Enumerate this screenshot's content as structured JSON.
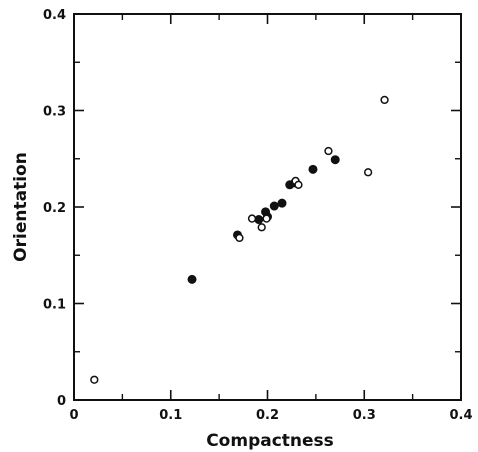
{
  "chart_data": {
    "type": "scatter",
    "xlabel": "Compactness",
    "ylabel": "Orientation",
    "xlim": [
      0,
      0.4
    ],
    "ylim": [
      0,
      0.4
    ],
    "xticks": [
      "0",
      "0.1",
      "0.2",
      "0.3",
      "0.4"
    ],
    "yticks": [
      "0",
      "0.1",
      "0.2",
      "0.3",
      "0.4"
    ],
    "grid": false,
    "series": [
      {
        "marker": "filled-circle",
        "points": [
          {
            "x": 0.122,
            "y": 0.125
          },
          {
            "x": 0.169,
            "y": 0.171
          },
          {
            "x": 0.191,
            "y": 0.187
          },
          {
            "x": 0.198,
            "y": 0.195
          },
          {
            "x": 0.2,
            "y": 0.19
          },
          {
            "x": 0.207,
            "y": 0.201
          },
          {
            "x": 0.215,
            "y": 0.204
          },
          {
            "x": 0.223,
            "y": 0.223
          },
          {
            "x": 0.228,
            "y": 0.225
          },
          {
            "x": 0.247,
            "y": 0.239
          },
          {
            "x": 0.27,
            "y": 0.249
          }
        ]
      },
      {
        "marker": "open-circle",
        "points": [
          {
            "x": 0.021,
            "y": 0.021
          },
          {
            "x": 0.171,
            "y": 0.168
          },
          {
            "x": 0.184,
            "y": 0.188
          },
          {
            "x": 0.194,
            "y": 0.179
          },
          {
            "x": 0.199,
            "y": 0.188
          },
          {
            "x": 0.229,
            "y": 0.227
          },
          {
            "x": 0.232,
            "y": 0.223
          },
          {
            "x": 0.263,
            "y": 0.258
          },
          {
            "x": 0.304,
            "y": 0.236
          },
          {
            "x": 0.321,
            "y": 0.311
          }
        ]
      }
    ]
  }
}
